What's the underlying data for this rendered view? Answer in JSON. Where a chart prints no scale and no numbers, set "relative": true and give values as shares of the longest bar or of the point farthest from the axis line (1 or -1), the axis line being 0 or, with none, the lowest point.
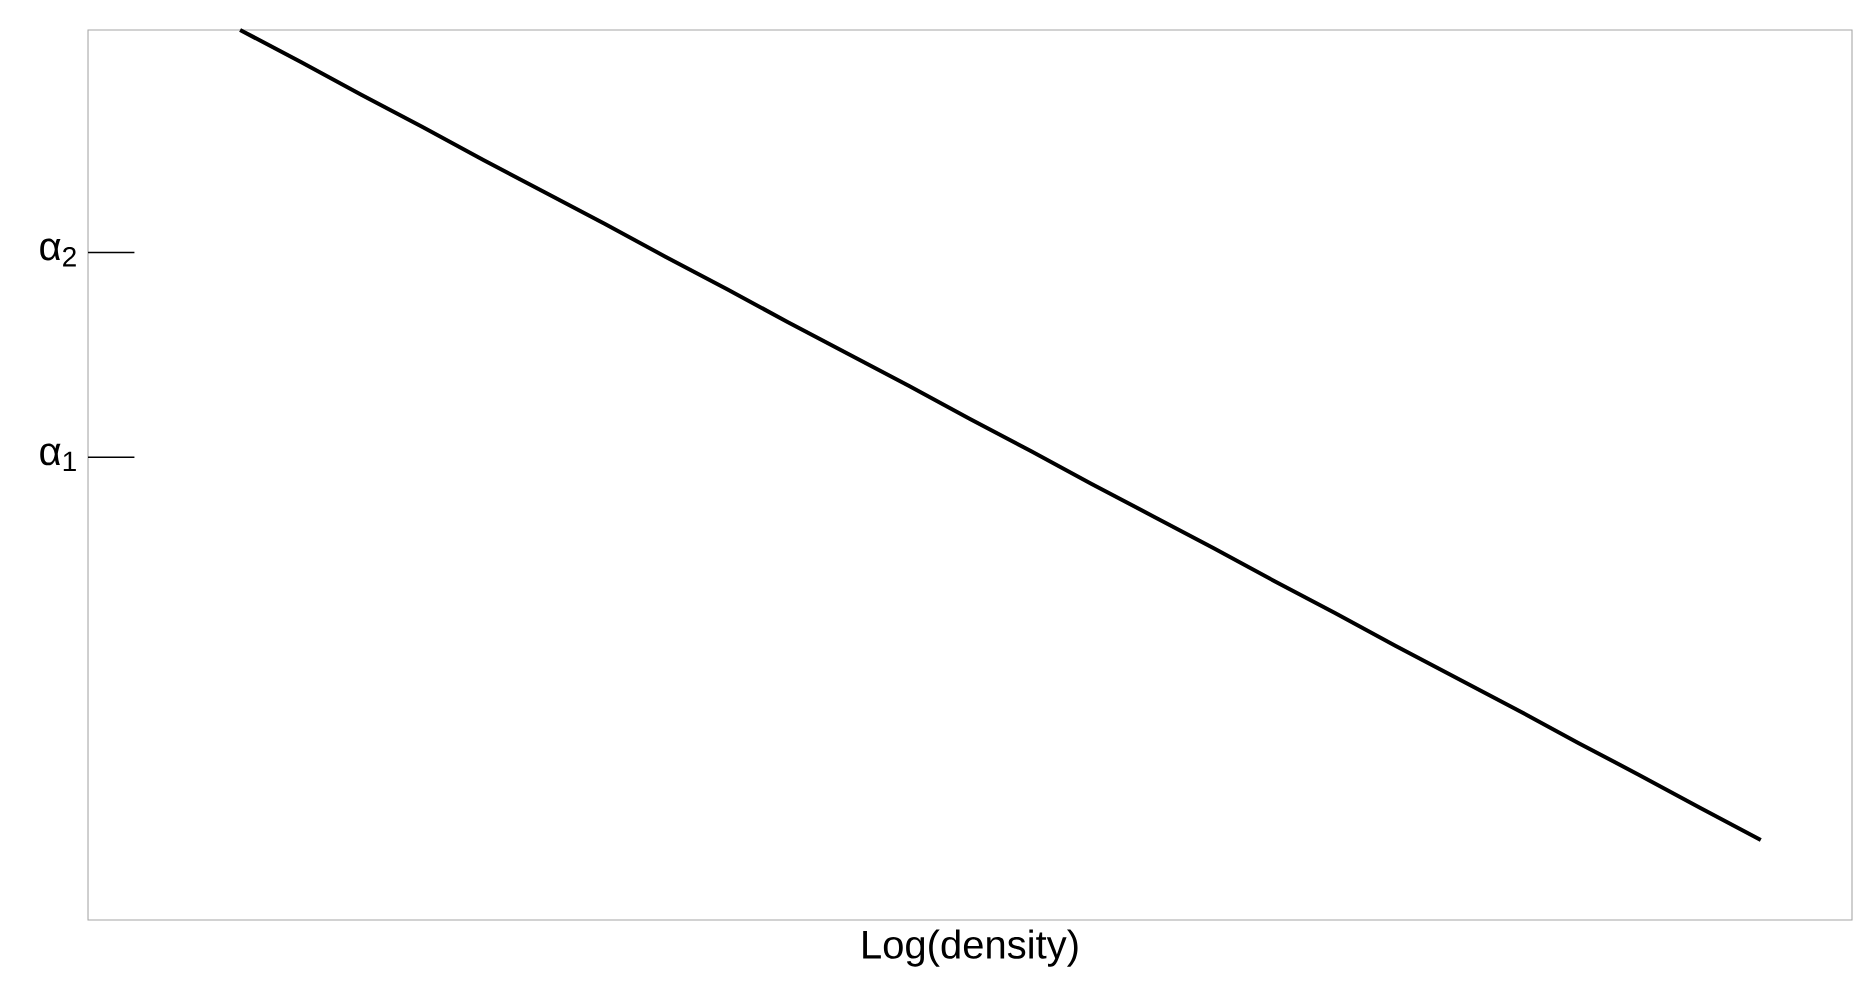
{
  "chart_data": {
    "type": "line",
    "xlabel": "Log(density)",
    "relative": true,
    "categories": [
      null,
      null,
      null,
      null,
      null,
      null,
      null,
      null,
      null,
      null,
      null,
      null,
      null,
      null,
      null,
      null,
      null,
      null,
      null,
      null,
      null,
      null,
      null,
      null,
      null,
      null,
      null,
      null,
      null
    ],
    "series": [
      {
        "color": "#000000",
        "values": [
          null,
          null,
          1.0,
          0.964,
          0.927,
          0.891,
          0.854,
          0.818,
          0.782,
          0.745,
          0.709,
          0.672,
          0.636,
          0.6,
          0.563,
          0.527,
          0.49,
          0.454,
          0.418,
          0.381,
          0.345,
          0.308,
          0.272,
          0.236,
          0.199,
          0.163,
          0.126,
          0.09,
          null
        ]
      }
    ],
    "ref_lines": [
      {
        "axis": "y",
        "value": 0.52,
        "label": "α$_{1}$"
      },
      {
        "axis": "y",
        "value": 0.75,
        "label": "α$_{2}$"
      }
    ]
  }
}
